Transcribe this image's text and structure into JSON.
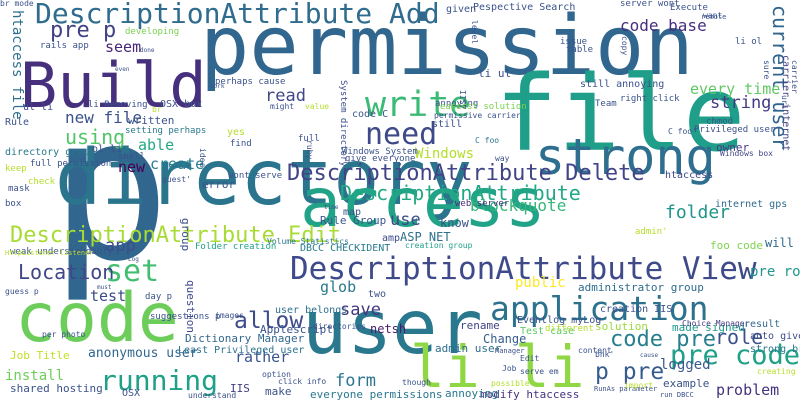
{
  "words": [
    {
      "text": "permission",
      "color": "#31668e"
    },
    {
      "text": "p",
      "color": "#31668e"
    },
    {
      "text": "file",
      "color": "#1f9e89"
    },
    {
      "text": "directory",
      "color": "#2b748e"
    },
    {
      "text": "code",
      "color": "#6ccd5a"
    },
    {
      "text": "user",
      "color": "#2a788e"
    },
    {
      "text": "access",
      "color": "#20a386"
    },
    {
      "text": "Build",
      "color": "#46307e"
    },
    {
      "text": "strong",
      "color": "#2e6e8e"
    },
    {
      "text": "li li",
      "color": "#8fd744"
    },
    {
      "text": "DescriptionAttribute Add",
      "color": "#2f6c8e"
    },
    {
      "text": "DescriptionAttribute View",
      "color": "#3e4a89"
    },
    {
      "text": "application",
      "color": "#2c718e"
    },
    {
      "text": "DescriptionAttribute Delete",
      "color": "#414487"
    },
    {
      "text": "DescriptionAttribute Edit",
      "color": "#a8db34"
    },
    {
      "text": "DescriptionAttribute",
      "color": "#22a884"
    },
    {
      "text": "running",
      "color": "#1fa187"
    },
    {
      "text": "write",
      "color": "#3bbb75"
    },
    {
      "text": "need",
      "color": "#3e4989"
    },
    {
      "text": "set",
      "color": "#42be71"
    },
    {
      "text": "pre code",
      "color": "#1fa088"
    },
    {
      "text": "code pre",
      "color": "#277f8e"
    },
    {
      "text": "p pre",
      "color": "#375b8d"
    },
    {
      "text": "current user",
      "color": "#32658e"
    },
    {
      "text": "pre p",
      "color": "#424186"
    },
    {
      "text": "allow",
      "color": "#3e4c8a"
    },
    {
      "text": "Location",
      "color": "#3f4788"
    },
    {
      "text": "role",
      "color": "#3b518b"
    },
    {
      "text": "using",
      "color": "#52c569"
    },
    {
      "text": "code base",
      "color": "#472f7d"
    },
    {
      "text": "form",
      "color": "#2a768e"
    },
    {
      "text": "read",
      "color": "#404688"
    },
    {
      "text": "new file",
      "color": "#3a538b"
    },
    {
      "text": "save",
      "color": "#453581"
    },
    {
      "text": "folder",
      "color": "#1f958b"
    },
    {
      "text": "blockquote",
      "color": "#35b779"
    },
    {
      "text": "string",
      "color": "#443a83"
    },
    {
      "text": "every time",
      "color": "#5ec962"
    },
    {
      "text": "problem",
      "color": "#46327e"
    },
    {
      "text": "install",
      "color": "#6ece58"
    },
    {
      "text": "Windows",
      "color": "#b5de2b"
    },
    {
      "text": "test",
      "color": "#3e4989"
    },
    {
      "text": "rather",
      "color": "#39558c"
    },
    {
      "text": "create",
      "color": "#277f8e"
    },
    {
      "text": "pre role",
      "color": "#1f978b"
    },
    {
      "text": "logged",
      "color": "#38598c"
    },
    {
      "text": "app",
      "color": "#3d4e8a"
    },
    {
      "text": "glob",
      "color": "#2a788e"
    },
    {
      "text": "new",
      "color": "#440154"
    },
    {
      "text": "able",
      "color": "#22a884"
    },
    {
      "text": "seem",
      "color": "#482677"
    },
    {
      "text": "htaccess file",
      "color": "#2d708e"
    },
    {
      "text": "anonymous user",
      "color": "#31688e"
    },
    {
      "text": "shared hosting",
      "color": "#3b528b"
    },
    {
      "text": "Job Title",
      "color": "#c2df23"
    },
    {
      "text": "ASP NET",
      "color": "#2e6f8e"
    },
    {
      "text": "use",
      "color": "#3e4a89"
    },
    {
      "text": "know",
      "color": "#3b528b"
    },
    {
      "text": "Rule Group",
      "color": "#39568c"
    },
    {
      "text": "netsh",
      "color": "#481b6d"
    },
    {
      "text": "OSX",
      "color": "#3a548c"
    },
    {
      "text": "IIS",
      "color": "#433e85"
    },
    {
      "text": "make",
      "color": "#3b528b"
    },
    {
      "text": "Dictionary Manager",
      "color": "#31688e"
    },
    {
      "text": "Least Privileged user",
      "color": "#2c728e"
    },
    {
      "text": "everyone permissions",
      "color": "#2a778e"
    },
    {
      "text": "modify htaccess",
      "color": "#46327e"
    },
    {
      "text": "annoying",
      "color": "#2a788e"
    },
    {
      "text": "example",
      "color": "#3b528b"
    },
    {
      "text": "Change",
      "color": "#365d8d"
    },
    {
      "text": "admin user",
      "color": "#2e6f8e"
    },
    {
      "text": "rename",
      "color": "#414487"
    },
    {
      "text": "public",
      "color": "#fde725"
    },
    {
      "text": "administrator group",
      "color": "#2f6c8e"
    },
    {
      "text": "foo code",
      "color": "#7fd34e"
    },
    {
      "text": "will",
      "color": "#31688e"
    },
    {
      "text": "made signed",
      "color": "#1f998a"
    },
    {
      "text": "solution",
      "color": "#9bd93c"
    },
    {
      "text": "user belongs",
      "color": "#2d708e"
    },
    {
      "text": "Applescript",
      "color": "#3b528b"
    },
    {
      "text": "question",
      "color": "#3e4a89"
    },
    {
      "text": "group",
      "color": "#3d4d8a"
    },
    {
      "text": "Eventlog myLog",
      "color": "#3a538b"
    },
    {
      "text": "Test case",
      "color": "#5ec962"
    },
    {
      "text": "creation IIS",
      "color": "#3b528b"
    },
    {
      "text": "Choice Manager",
      "color": "#443b84"
    },
    {
      "text": "strong br",
      "color": "#2a768e"
    },
    {
      "text": "auto give",
      "color": "#3e4c8a"
    },
    {
      "text": "result",
      "color": "#31688e"
    },
    {
      "text": "internet gps",
      "color": "#2f6b8e"
    },
    {
      "text": "htaccess",
      "color": "#3f4788"
    },
    {
      "text": "owner",
      "color": "#443983"
    },
    {
      "text": "Privileged user",
      "color": "#3b528b"
    },
    {
      "text": "Windows box",
      "color": "#404688"
    },
    {
      "text": "chmod",
      "color": "#375a8c"
    },
    {
      "text": "carrier internet",
      "color": "#424086"
    },
    {
      "text": "web server",
      "color": "#472d7b"
    },
    {
      "text": "DBCC CHECKIDENT",
      "color": "#287c8e"
    },
    {
      "text": "Folder creation",
      "color": "#1fa187"
    },
    {
      "text": "Volume Statistics",
      "color": "#2a788e"
    },
    {
      "text": "creation group",
      "color": "#1fa187"
    },
    {
      "text": "amp",
      "color": "#3e4a89"
    },
    {
      "text": "map",
      "color": "#3b528b"
    },
    {
      "text": "weak understandably",
      "color": "#3b528b"
    },
    {
      "text": "suggestions p",
      "color": "#3b528b"
    },
    {
      "text": "day p",
      "color": "#3b528b"
    },
    {
      "text": "per photo",
      "color": "#3b528b"
    },
    {
      "text": "two",
      "color": "#3b528b"
    },
    {
      "text": "directories",
      "color": "#3b528b"
    },
    {
      "text": "images",
      "color": "#3b528b"
    },
    {
      "text": "directory group",
      "color": "#2a788e"
    },
    {
      "text": "full permission",
      "color": "#3b528b"
    },
    {
      "text": "Rule",
      "color": "#3b528b"
    },
    {
      "text": "ul li",
      "color": "#3e4a89"
    },
    {
      "text": "ol li",
      "color": "#3b528b"
    },
    {
      "text": "li Removing",
      "color": "#3b528b"
    },
    {
      "text": "OSX box",
      "color": "#3b528b"
    },
    {
      "text": "rails app",
      "color": "#3b528b"
    },
    {
      "text": "developing",
      "color": "#7ad151"
    },
    {
      "text": "written",
      "color": "#3b528b"
    },
    {
      "text": "setting perhaps",
      "color": "#2a788e"
    },
    {
      "text": "perhaps cause",
      "color": "#3b528b"
    },
    {
      "text": "might",
      "color": "#3b528b"
    },
    {
      "text": "value",
      "color": "#b5de2b"
    },
    {
      "text": "full",
      "color": "#3b528b"
    },
    {
      "text": "Windows System",
      "color": "#3b528b"
    },
    {
      "text": "give everyone",
      "color": "#3b528b"
    },
    {
      "text": "System directory",
      "color": "#3b528b"
    },
    {
      "text": "code C",
      "color": "#3b528b"
    },
    {
      "text": "still",
      "color": "#3b528b"
    },
    {
      "text": "annoying",
      "color": "#3b528b"
    },
    {
      "text": "given",
      "color": "#3b528b"
    },
    {
      "text": "Pespective Search",
      "color": "#3b528b"
    },
    {
      "text": "li ul",
      "color": "#3b528b"
    },
    {
      "text": "server wont",
      "color": "#3b528b"
    },
    {
      "text": "issue",
      "color": "#3b528b"
    },
    {
      "text": "table",
      "color": "#3b528b"
    },
    {
      "text": "easiest solution",
      "color": "#7ad151"
    },
    {
      "text": "still annoying",
      "color": "#3b528b"
    },
    {
      "text": "right click",
      "color": "#3b528b"
    },
    {
      "text": "Team",
      "color": "#3b528b"
    },
    {
      "text": "Execute",
      "color": "#3b528b"
    },
    {
      "text": "want",
      "color": "#3b528b"
    },
    {
      "text": "remote",
      "color": "#3b528b"
    },
    {
      "text": "li ol",
      "color": "#3b528b"
    },
    {
      "text": "copy",
      "color": "#3b528b"
    },
    {
      "text": "sure",
      "color": "#3b528b"
    },
    {
      "text": "level",
      "color": "#3b528b"
    },
    {
      "text": "IIS7",
      "color": "#3b528b"
    },
    {
      "text": "work",
      "color": "#3b528b"
    },
    {
      "text": "even",
      "color": "#3b528b"
    },
    {
      "text": "done",
      "color": "#3b528b"
    },
    {
      "text": "shell",
      "color": "#3b528b"
    },
    {
      "text": "find",
      "color": "#3b528b"
    },
    {
      "text": "yes",
      "color": "#b5de2b"
    },
    {
      "text": "idea",
      "color": "#3b528b"
    },
    {
      "text": "wont serve",
      "color": "#3b528b"
    },
    {
      "text": "check",
      "color": "#b5de2b"
    },
    {
      "text": "guest'",
      "color": "#3b528b"
    },
    {
      "text": "keep",
      "color": "#b5de2b"
    },
    {
      "text": "box",
      "color": "#3b528b"
    },
    {
      "text": "mask",
      "color": "#3b528b"
    },
    {
      "text": "error",
      "color": "#3b528b"
    },
    {
      "text": "HttpListener listener",
      "color": "#b5de2b"
    },
    {
      "text": "guess p",
      "color": "#3b528b"
    },
    {
      "text": "must",
      "color": "#3b528b"
    },
    {
      "text": "Log",
      "color": "#3b528b"
    },
    {
      "text": "different",
      "color": "#b5de2b"
    },
    {
      "text": "understand",
      "color": "#3b528b"
    },
    {
      "text": "option",
      "color": "#3b528b"
    },
    {
      "text": "click info",
      "color": "#3b528b"
    },
    {
      "text": "though",
      "color": "#3b528b"
    },
    {
      "text": "possible",
      "color": "#b5de2b"
    },
    {
      "text": "content",
      "color": "#3b528b"
    },
    {
      "text": "serve em",
      "color": "#3b528b"
    },
    {
      "text": "Manager",
      "color": "#3b528b"
    },
    {
      "text": "Edit",
      "color": "#3b528b"
    },
    {
      "text": "bhk'",
      "color": "#3b528b"
    },
    {
      "text": "RunAs parameter",
      "color": "#3b528b"
    },
    {
      "text": "import",
      "color": "#b5de2b"
    },
    {
      "text": "run DBCC",
      "color": "#3b528b"
    },
    {
      "text": "cause",
      "color": "#3b528b"
    },
    {
      "text": "creating",
      "color": "#b5de2b"
    },
    {
      "text": "admin'",
      "color": "#b5de2b"
    },
    {
      "text": "ruby",
      "color": "#3b528b"
    },
    {
      "text": "way",
      "color": "#3b528b"
    },
    {
      "text": "C foo'",
      "color": "#3b528b"
    },
    {
      "text": "C foo",
      "color": "#2a788e"
    },
    {
      "text": "uri",
      "color": "#3b528b"
    },
    {
      "text": "carrier",
      "color": "#3b528b"
    },
    {
      "text": "permissive carrier",
      "color": "#3b528b"
    },
    {
      "text": "br",
      "color": "#b5de2b"
    },
    {
      "text": "time",
      "color": "#3b528b"
    },
    {
      "text": "Job",
      "color": "#3b528b"
    },
    {
      "text": "br mode",
      "color": "#3b528b"
    }
  ]
}
